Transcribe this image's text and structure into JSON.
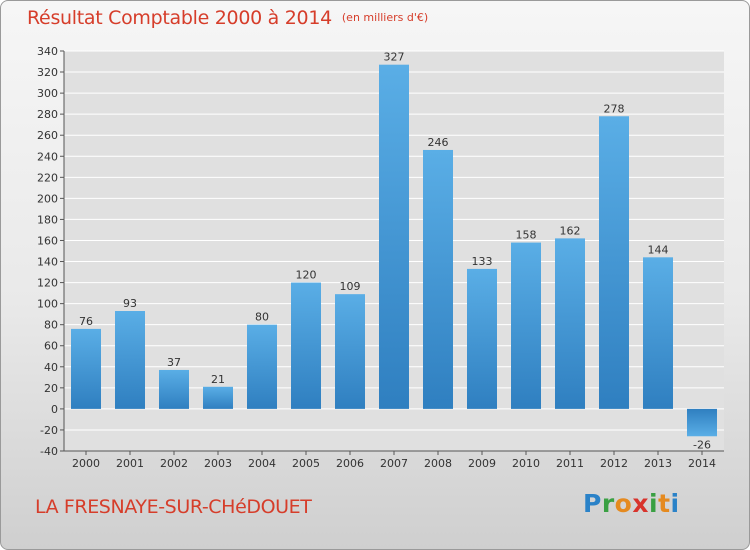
{
  "header": {
    "title": "Résultat Comptable 2000 à 2014",
    "subtitle": "(en milliers d'€)"
  },
  "commune_name": "LA FRESNAYE-SUR-CHéDOUET",
  "logo": {
    "letters": [
      "P",
      "r",
      "o",
      "x",
      "i",
      "t",
      "i"
    ]
  },
  "colors": {
    "bar": "#3d93d6",
    "bar_light": "#5aaee6",
    "title": "#d63d2a",
    "grid": "#ffffff",
    "plot_bg": "#e0e0e0"
  },
  "chart_data": {
    "type": "bar",
    "categories": [
      "2000",
      "2001",
      "2002",
      "2003",
      "2004",
      "2005",
      "2006",
      "2007",
      "2008",
      "2009",
      "2010",
      "2011",
      "2012",
      "2013",
      "2014"
    ],
    "values": [
      76,
      93,
      37,
      21,
      80,
      120,
      109,
      327,
      246,
      133,
      158,
      162,
      278,
      144,
      -26
    ],
    "ylim": [
      -40,
      340
    ],
    "yticks": [
      -40,
      -20,
      0,
      20,
      40,
      60,
      80,
      100,
      120,
      140,
      160,
      180,
      200,
      220,
      240,
      260,
      280,
      300,
      320,
      340
    ],
    "grid": true,
    "xlabel": "",
    "ylabel": ""
  }
}
